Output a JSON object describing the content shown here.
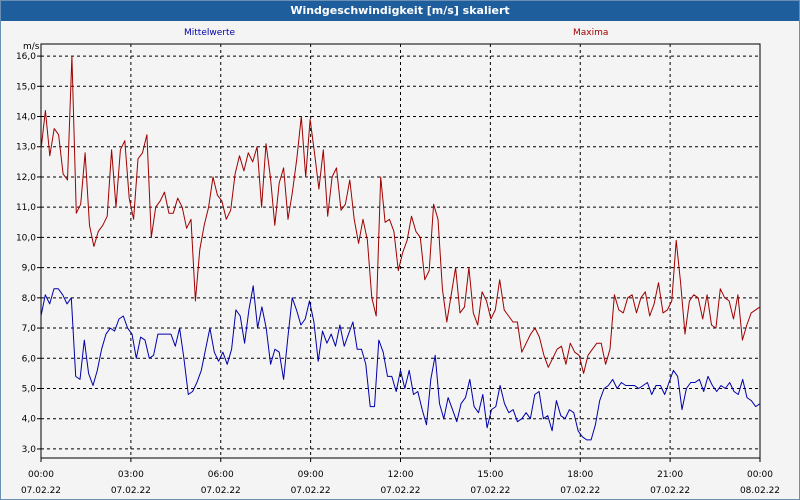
{
  "window": {
    "title": "Windgeschwindigkeit [m/s] skaliert"
  },
  "colors": {
    "mean": "#0000aa",
    "max": "#a00000",
    "titlebar": "#1f5e9c"
  },
  "chart_data": {
    "type": "line",
    "title": "Windgeschwindigkeit [m/s] skaliert",
    "ylabel": "m/s",
    "ylim": [
      2.7,
      16.4
    ],
    "xlim": [
      0,
      24
    ],
    "grid": true,
    "yticks": [
      3.0,
      4.0,
      5.0,
      6.0,
      7.0,
      8.0,
      9.0,
      10.0,
      11.0,
      12.0,
      13.0,
      14.0,
      15.0,
      16.0
    ],
    "yticklabels": [
      "3,0",
      "4,0",
      "5,0",
      "6,0",
      "7,0",
      "8,0",
      "9,0",
      "10,0",
      "11,0",
      "12,0",
      "13,0",
      "14,0",
      "15,0",
      "16,0"
    ],
    "xticks": [
      {
        "time": "00:00",
        "date": "07.02.22"
      },
      {
        "time": "03:00",
        "date": "07.02.22"
      },
      {
        "time": "06:00",
        "date": "07.02.22"
      },
      {
        "time": "09:00",
        "date": "07.02.22"
      },
      {
        "time": "12:00",
        "date": "07.02.22"
      },
      {
        "time": "15:00",
        "date": "07.02.22"
      },
      {
        "time": "18:00",
        "date": "07.02.22"
      },
      {
        "time": "21:00",
        "date": "07.02.22"
      },
      {
        "time": "00:00",
        "date": "08.02.22"
      }
    ],
    "series": [
      {
        "name": "Mittelwerte",
        "color": "#0000aa",
        "values": [
          7.4,
          8.1,
          7.8,
          8.3,
          8.3,
          8.1,
          7.8,
          8.0,
          5.4,
          5.3,
          6.6,
          5.5,
          5.1,
          5.6,
          6.3,
          6.8,
          7.0,
          6.9,
          7.3,
          7.4,
          7.0,
          6.8,
          6.0,
          6.7,
          6.6,
          6.0,
          6.1,
          6.8,
          6.8,
          6.8,
          6.8,
          6.4,
          7.0,
          6.0,
          4.8,
          4.9,
          5.2,
          5.6,
          6.3,
          7.0,
          6.2,
          5.9,
          6.2,
          5.8,
          6.3,
          7.6,
          7.4,
          6.5,
          7.6,
          8.4,
          7.0,
          7.7,
          7.0,
          5.8,
          6.3,
          6.2,
          5.3,
          6.7,
          8.0,
          7.6,
          7.1,
          7.3,
          7.9,
          7.2,
          5.9,
          6.9,
          6.5,
          6.8,
          6.4,
          7.1,
          6.4,
          6.8,
          7.2,
          6.3,
          6.3,
          5.8,
          4.4,
          4.4,
          6.6,
          6.2,
          5.4,
          5.4,
          4.9,
          5.6,
          5.0,
          5.6,
          4.8,
          4.9,
          4.3,
          3.8,
          5.3,
          6.1,
          4.5,
          4.0,
          4.7,
          4.3,
          3.9,
          4.5,
          4.7,
          5.3,
          4.4,
          4.2,
          4.8,
          3.7,
          4.3,
          4.4,
          5.1,
          4.5,
          4.2,
          4.3,
          3.9,
          4.0,
          4.2,
          4.0,
          4.8,
          4.9,
          4.0,
          4.1,
          3.6,
          4.6,
          4.1,
          4.0,
          4.3,
          4.2,
          3.6,
          3.4,
          3.3,
          3.3,
          3.8,
          4.6,
          5.0,
          5.1,
          5.3,
          5.0,
          5.2,
          5.1,
          5.1,
          5.1,
          5.0,
          5.1,
          5.2,
          4.8,
          5.1,
          5.1,
          4.8,
          5.2,
          5.6,
          5.4,
          4.3,
          5.0,
          5.2,
          5.2,
          5.3,
          4.9,
          5.4,
          5.1,
          4.9,
          5.1,
          5.0,
          5.2,
          4.9,
          4.8,
          5.3,
          4.7,
          4.6,
          4.4,
          4.5
        ]
      },
      {
        "name": "Maxima",
        "color": "#a00000",
        "values": [
          12.9,
          14.2,
          12.7,
          13.6,
          13.4,
          12.1,
          11.9,
          16.0,
          10.8,
          11.1,
          12.8,
          10.4,
          9.7,
          10.2,
          10.4,
          10.7,
          12.9,
          11.0,
          12.9,
          13.2,
          11.3,
          10.6,
          12.6,
          12.8,
          13.4,
          10.0,
          11.0,
          11.2,
          11.5,
          10.8,
          10.8,
          11.3,
          11.0,
          10.3,
          10.6,
          7.9,
          9.6,
          10.4,
          11.0,
          12.0,
          11.4,
          11.2,
          10.6,
          10.9,
          12.1,
          12.7,
          12.2,
          12.8,
          12.5,
          13.0,
          11.0,
          13.1,
          12.0,
          10.4,
          11.8,
          12.3,
          10.6,
          11.5,
          12.6,
          14.0,
          12.0,
          13.9,
          12.8,
          11.6,
          12.9,
          10.7,
          12.0,
          12.3,
          10.9,
          11.1,
          11.9,
          10.6,
          9.8,
          10.6,
          9.9,
          8.0,
          7.4,
          12.0,
          10.5,
          10.6,
          10.2,
          8.9,
          9.5,
          9.9,
          10.7,
          10.2,
          10.0,
          8.6,
          8.9,
          11.1,
          10.6,
          8.3,
          7.2,
          8.1,
          9.0,
          7.5,
          7.7,
          9.0,
          7.5,
          7.1,
          8.2,
          7.9,
          7.3,
          7.6,
          8.6,
          7.6,
          7.4,
          7.2,
          7.2,
          6.2,
          6.5,
          6.8,
          7.0,
          6.7,
          6.1,
          5.7,
          6.0,
          6.3,
          6.4,
          5.8,
          6.5,
          6.2,
          6.1,
          5.5,
          6.1,
          6.3,
          6.5,
          6.5,
          5.8,
          6.3,
          8.1,
          7.6,
          7.5,
          8.0,
          8.1,
          7.5,
          8.0,
          8.2,
          7.4,
          7.8,
          8.5,
          7.5,
          7.6,
          7.9,
          9.9,
          8.5,
          6.8,
          7.9,
          8.1,
          8.0,
          7.3,
          8.1,
          7.1,
          7.0,
          8.3,
          8.0,
          7.9,
          7.3,
          8.1,
          6.6,
          7.1,
          7.5,
          7.6,
          7.7
        ]
      }
    ]
  }
}
